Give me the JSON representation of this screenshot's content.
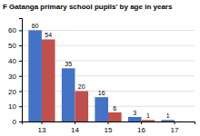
{
  "chart_data": {
    "type": "bar",
    "title": "F Gatanga primary school pupils' by age in years",
    "categories": [
      "13",
      "14",
      "15",
      "16",
      "17"
    ],
    "series": [
      {
        "color": "#4472C4",
        "values": [
          60,
          35,
          16,
          3,
          1
        ]
      },
      {
        "color": "#C0504D",
        "values": [
          54,
          20,
          6,
          1,
          0
        ]
      }
    ],
    "ylim": [
      0,
      68
    ],
    "yticks": [
      0,
      10,
      20,
      30,
      40,
      50,
      60
    ],
    "grid": true,
    "data_labels": true
  }
}
